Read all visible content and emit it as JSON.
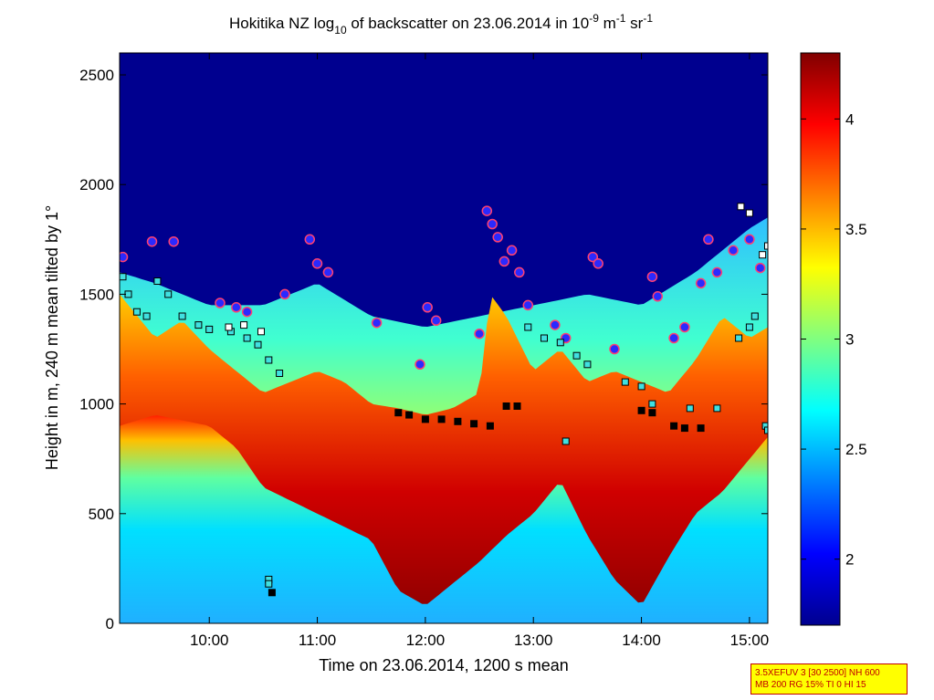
{
  "chart_data": {
    "type": "heatmap",
    "title": {
      "prefix": "Hokitika NZ log",
      "log_sub": "10",
      "middle": " of backscatter on 23.06.2014 in 10",
      "exp1": "-9",
      "unit1": " m",
      "exp2": "-1",
      "unit2": " sr",
      "exp3": "-1"
    },
    "xlabel": "Time on 23.06.2014, 1200 s mean",
    "ylabel": "Height in m, 240 m mean tilted by 1°",
    "x_ticks": [
      "10:00",
      "11:00",
      "12:00",
      "13:00",
      "14:00",
      "15:00"
    ],
    "x_tick_hours": [
      10,
      11,
      12,
      13,
      14,
      15
    ],
    "xlim_hours": [
      9.17,
      15.17
    ],
    "y_ticks": [
      0,
      500,
      1000,
      1500,
      2000,
      2500
    ],
    "ylim": [
      0,
      2600
    ],
    "colorbar": {
      "colormap": "jet",
      "range": [
        1.7,
        4.3
      ],
      "ticks": [
        "2",
        "2.5",
        "3",
        "3.5",
        "4"
      ],
      "tick_values": [
        2,
        2.5,
        3,
        3.5,
        4
      ]
    },
    "layers": {
      "boundary_layer_top_m": [
        [
          9.17,
          1500
        ],
        [
          9.5,
          1300
        ],
        [
          9.75,
          1380
        ],
        [
          10.0,
          1250
        ],
        [
          10.25,
          1150
        ],
        [
          10.5,
          1050
        ],
        [
          10.75,
          1100
        ],
        [
          11.0,
          1150
        ],
        [
          11.25,
          1100
        ],
        [
          11.5,
          1000
        ],
        [
          11.75,
          980
        ],
        [
          12.0,
          950
        ],
        [
          12.25,
          980
        ],
        [
          12.5,
          1050
        ],
        [
          12.6,
          1500
        ],
        [
          12.75,
          1400
        ],
        [
          13.0,
          1150
        ],
        [
          13.25,
          1250
        ],
        [
          13.5,
          1100
        ],
        [
          13.75,
          1150
        ],
        [
          14.0,
          1100
        ],
        [
          14.25,
          1050
        ],
        [
          14.5,
          1200
        ],
        [
          14.75,
          1400
        ],
        [
          15.0,
          1300
        ],
        [
          15.17,
          1350
        ]
      ],
      "aerosol_layer_top_m": [
        [
          9.17,
          1600
        ],
        [
          9.5,
          1550
        ],
        [
          9.75,
          1500
        ],
        [
          10.0,
          1450
        ],
        [
          10.5,
          1450
        ],
        [
          11.0,
          1550
        ],
        [
          11.5,
          1400
        ],
        [
          12.0,
          1350
        ],
        [
          12.5,
          1400
        ],
        [
          13.0,
          1450
        ],
        [
          13.5,
          1500
        ],
        [
          14.0,
          1450
        ],
        [
          14.5,
          1600
        ],
        [
          15.0,
          1800
        ],
        [
          15.17,
          1850
        ]
      ],
      "high_backscatter_bottom_m": [
        [
          9.17,
          900
        ],
        [
          9.5,
          950
        ],
        [
          10.0,
          900
        ],
        [
          10.25,
          800
        ],
        [
          10.5,
          620
        ],
        [
          11.0,
          500
        ],
        [
          11.5,
          380
        ],
        [
          11.75,
          150
        ],
        [
          12.0,
          80
        ],
        [
          12.5,
          280
        ],
        [
          12.75,
          400
        ],
        [
          13.0,
          500
        ],
        [
          13.25,
          650
        ],
        [
          13.5,
          400
        ],
        [
          13.75,
          200
        ],
        [
          14.0,
          80
        ],
        [
          14.25,
          300
        ],
        [
          14.5,
          500
        ],
        [
          14.75,
          600
        ],
        [
          15.17,
          850
        ]
      ]
    },
    "marker_series": [
      {
        "marker": "circle",
        "color": "#2a2aff",
        "edge": "#ff4070",
        "points": [
          [
            9.2,
            1670
          ],
          [
            9.47,
            1740
          ],
          [
            9.67,
            1740
          ],
          [
            10.1,
            1460
          ],
          [
            10.25,
            1440
          ],
          [
            10.35,
            1420
          ],
          [
            10.7,
            1500
          ],
          [
            10.93,
            1750
          ],
          [
            11.0,
            1640
          ],
          [
            11.1,
            1600
          ],
          [
            11.55,
            1370
          ],
          [
            11.95,
            1180
          ],
          [
            12.02,
            1440
          ],
          [
            12.1,
            1380
          ],
          [
            12.5,
            1320
          ],
          [
            12.57,
            1880
          ],
          [
            12.62,
            1820
          ],
          [
            12.67,
            1760
          ],
          [
            12.73,
            1650
          ],
          [
            12.8,
            1700
          ],
          [
            12.87,
            1600
          ],
          [
            12.95,
            1450
          ],
          [
            13.2,
            1360
          ],
          [
            13.3,
            1300
          ],
          [
            13.55,
            1670
          ],
          [
            13.6,
            1640
          ],
          [
            13.75,
            1250
          ],
          [
            14.1,
            1580
          ],
          [
            14.15,
            1490
          ],
          [
            14.3,
            1300
          ],
          [
            14.4,
            1350
          ],
          [
            14.55,
            1550
          ],
          [
            14.62,
            1750
          ],
          [
            14.7,
            1600
          ],
          [
            14.85,
            1700
          ],
          [
            15.0,
            1750
          ],
          [
            15.1,
            1620
          ]
        ]
      },
      {
        "marker": "square",
        "color": "#40e0e0",
        "edge": "#000000",
        "points": [
          [
            9.2,
            1580
          ],
          [
            9.25,
            1500
          ],
          [
            9.33,
            1420
          ],
          [
            9.42,
            1400
          ],
          [
            9.52,
            1560
          ],
          [
            9.62,
            1500
          ],
          [
            9.75,
            1400
          ],
          [
            9.9,
            1360
          ],
          [
            10.0,
            1340
          ],
          [
            10.2,
            1330
          ],
          [
            10.35,
            1300
          ],
          [
            10.45,
            1270
          ],
          [
            10.55,
            1200
          ],
          [
            10.65,
            1140
          ],
          [
            10.55,
            200
          ],
          [
            10.55,
            180
          ],
          [
            12.95,
            1350
          ],
          [
            13.1,
            1300
          ],
          [
            13.25,
            1280
          ],
          [
            13.3,
            830
          ],
          [
            13.4,
            1220
          ],
          [
            13.5,
            1180
          ],
          [
            13.85,
            1100
          ],
          [
            14.0,
            1080
          ],
          [
            14.1,
            1000
          ],
          [
            14.45,
            980
          ],
          [
            14.7,
            980
          ],
          [
            14.9,
            1300
          ],
          [
            15.0,
            1350
          ],
          [
            15.05,
            1400
          ],
          [
            15.15,
            900
          ],
          [
            15.17,
            880
          ]
        ]
      },
      {
        "marker": "square",
        "color": "#ffffff",
        "edge": "#000000",
        "points": [
          [
            10.18,
            1350
          ],
          [
            10.32,
            1360
          ],
          [
            10.48,
            1330
          ],
          [
            14.92,
            1900
          ],
          [
            15.0,
            1870
          ],
          [
            15.12,
            1680
          ],
          [
            15.17,
            1720
          ]
        ]
      },
      {
        "marker": "square",
        "color": "#000000",
        "edge": "#000000",
        "points": [
          [
            10.58,
            140
          ],
          [
            11.75,
            960
          ],
          [
            11.85,
            950
          ],
          [
            12.0,
            930
          ],
          [
            12.15,
            930
          ],
          [
            12.3,
            920
          ],
          [
            12.45,
            910
          ],
          [
            12.6,
            900
          ],
          [
            12.75,
            990
          ],
          [
            12.85,
            990
          ],
          [
            14.0,
            970
          ],
          [
            14.1,
            960
          ],
          [
            14.3,
            900
          ],
          [
            14.4,
            890
          ],
          [
            14.55,
            890
          ]
        ]
      }
    ]
  },
  "info_box": {
    "line1": "3.5XEFUV 3 [30 2500] NH 600",
    "line2": "MB 200 RG 15% TI 0 HI 15"
  }
}
